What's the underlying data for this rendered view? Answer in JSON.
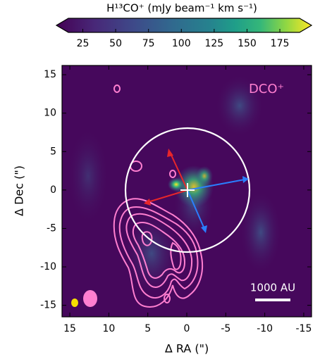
{
  "chart_data": {
    "type": "image",
    "colorbar": {
      "label": "H¹³CO⁺ (mJy beam⁻¹ km s⁻¹)",
      "lim": [
        14,
        190
      ],
      "ticks": [
        25,
        50,
        75,
        100,
        125,
        150,
        175
      ]
    },
    "xlabel": "Δ RA (\")",
    "ylabel": "Δ Dec (\")",
    "xlim": [
      16,
      -16
    ],
    "ylim": [
      -16.5,
      16.2
    ],
    "xticks": [
      15,
      10,
      5,
      0,
      -5,
      -10,
      -15
    ],
    "yticks": [
      -15,
      -10,
      -5,
      0,
      5,
      10,
      15
    ],
    "annotations": {
      "contour_label": "DCO⁺",
      "scale_bar": "1000 AU"
    }
  }
}
